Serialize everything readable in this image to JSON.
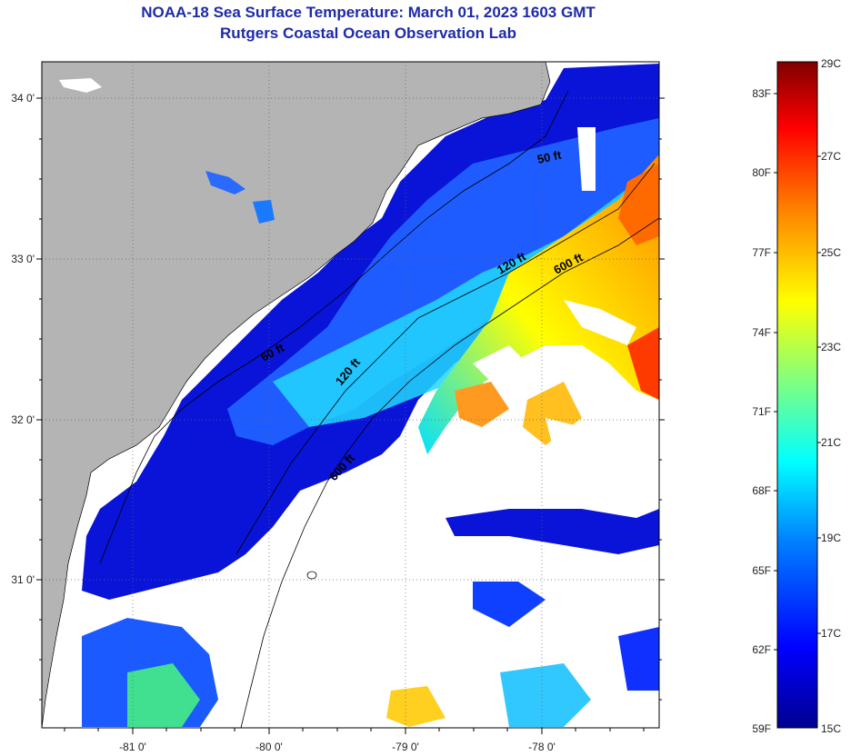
{
  "title": "NOAA-18 Sea Surface Temperature:  March 01, 2023 1603 GMT",
  "subtitle": "Rutgers Coastal Ocean Observation Lab",
  "map": {
    "lat_labels": [
      "34 0'",
      "33 0'",
      "32 0'",
      "31 0'"
    ],
    "lon_labels": [
      "-81 0'",
      "-80 0'",
      "-79 0'",
      "-78 0'"
    ],
    "depth_labels": {
      "shelf_50": "50 ft",
      "shelf_50_south": "60 ft",
      "mid_120": "120 ft",
      "mid_120_south": "120 ft",
      "break_600": "600 ft",
      "break_600_south": "600 ft"
    },
    "colors": {
      "land": "#b4b4b4",
      "cloud": "#ffffff",
      "grid": "#777777"
    }
  },
  "colorbar": {
    "fahrenheit": [
      "83F",
      "80F",
      "77F",
      "74F",
      "71F",
      "68F",
      "65F",
      "62F",
      "59F"
    ],
    "celsius": [
      "29C",
      "27C",
      "25C",
      "23C",
      "21C",
      "19C",
      "17C",
      "15C"
    ],
    "range_c": [
      15,
      29
    ],
    "colormap": [
      "#00008f",
      "#0000ff",
      "#0080ff",
      "#00ffff",
      "#80ff80",
      "#ffff00",
      "#ff8000",
      "#ff0000",
      "#800000"
    ]
  }
}
